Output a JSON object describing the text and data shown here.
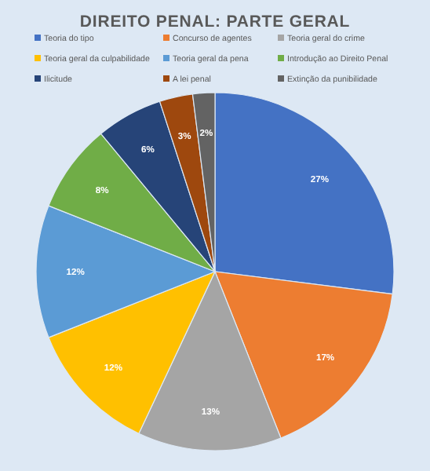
{
  "chart_data": {
    "type": "pie",
    "title": "DIREITO PENAL: PARTE GERAL",
    "categories": [
      "Teoria do tipo",
      "Concurso de agentes",
      "Teoria geral do crime",
      "Teoria geral da culpabilidade",
      "Teoria geral da pena",
      "Introdução ao Direito Penal",
      "Ilicitude",
      "A lei penal",
      "Extinção da punibilidade"
    ],
    "values": [
      27,
      17,
      13,
      12,
      12,
      8,
      6,
      3,
      2
    ],
    "colors": [
      "#4472c4",
      "#ed7d31",
      "#a5a5a5",
      "#ffc000",
      "#5b9bd5",
      "#70ad47",
      "#264478",
      "#9e480e",
      "#636363"
    ],
    "value_labels": [
      "27%",
      "17%",
      "13%",
      "12%",
      "12%",
      "8%",
      "6%",
      "3%",
      "2%"
    ],
    "legend": "top"
  }
}
